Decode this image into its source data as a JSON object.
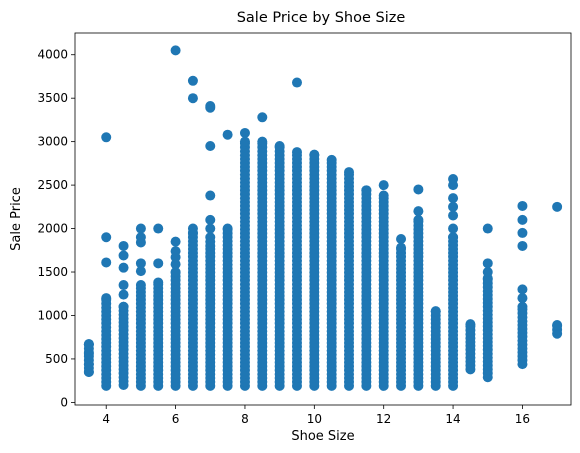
{
  "chart_data": {
    "type": "scatter",
    "title": "Sale Price by Shoe Size",
    "xlabel": "Shoe Size",
    "ylabel": "Sale Price",
    "xlim": [
      3.1,
      17.4
    ],
    "ylim": [
      -30,
      4250
    ],
    "xticks": [
      4,
      6,
      8,
      10,
      12,
      14,
      16
    ],
    "yticks": [
      0,
      500,
      1000,
      1500,
      2000,
      2500,
      3000,
      3500,
      4000
    ],
    "grid": false,
    "marker_color": "#1f77b4",
    "series": [
      {
        "columns": [
          {
            "x": 3.5,
            "min": 350,
            "max": 670,
            "extra": [
              350,
              440,
              560,
              670
            ]
          },
          {
            "x": 4,
            "min": 190,
            "max": 1200,
            "extra": [
              1610,
              1900,
              3050
            ]
          },
          {
            "x": 4.5,
            "min": 200,
            "max": 1100,
            "extra": [
              1240,
              1350,
              1550,
              1690,
              1800
            ]
          },
          {
            "x": 5,
            "min": 190,
            "max": 1350,
            "extra": [
              1510,
              1600,
              1840,
              1900,
              2000
            ]
          },
          {
            "x": 5.5,
            "min": 190,
            "max": 1380,
            "extra": [
              1600,
              2000
            ]
          },
          {
            "x": 6,
            "min": 190,
            "max": 1500,
            "extra": [
              1590,
              1670,
              1740,
              1850,
              4050
            ]
          },
          {
            "x": 6.5,
            "min": 190,
            "max": 1950,
            "extra": [
              2000,
              3500,
              3700
            ]
          },
          {
            "x": 7,
            "min": 190,
            "max": 1800,
            "extra": [
              1850,
              1900,
              2000,
              2100,
              2380,
              2950,
              3390,
              3410
            ]
          },
          {
            "x": 7.5,
            "min": 190,
            "max": 2000,
            "extra": [
              3080
            ]
          },
          {
            "x": 8,
            "min": 190,
            "max": 3000,
            "extra": [
              3100
            ]
          },
          {
            "x": 8.5,
            "min": 190,
            "max": 3000,
            "extra": [
              3280
            ]
          },
          {
            "x": 9,
            "min": 190,
            "max": 2950,
            "extra": []
          },
          {
            "x": 9.5,
            "min": 190,
            "max": 2880,
            "extra": [
              3680
            ]
          },
          {
            "x": 10,
            "min": 190,
            "max": 2850,
            "extra": []
          },
          {
            "x": 10.5,
            "min": 190,
            "max": 2790,
            "extra": []
          },
          {
            "x": 11,
            "min": 190,
            "max": 2650,
            "extra": []
          },
          {
            "x": 11.5,
            "min": 190,
            "max": 2440,
            "extra": []
          },
          {
            "x": 12,
            "min": 190,
            "max": 2380,
            "extra": [
              2500
            ]
          },
          {
            "x": 12.5,
            "min": 190,
            "max": 1780,
            "extra": [
              1880
            ]
          },
          {
            "x": 13,
            "min": 190,
            "max": 2100,
            "extra": [
              2200,
              2450
            ]
          },
          {
            "x": 13.5,
            "min": 190,
            "max": 1050,
            "extra": []
          },
          {
            "x": 14,
            "min": 190,
            "max": 1900,
            "extra": [
              2000,
              2150,
              2250,
              2350,
              2500,
              2570
            ]
          },
          {
            "x": 14.5,
            "min": 380,
            "max": 900,
            "extra": []
          },
          {
            "x": 15,
            "min": 290,
            "max": 1430,
            "extra": [
              1500,
              1600,
              2000
            ]
          },
          {
            "x": 16,
            "min": 440,
            "max": 1100,
            "extra": [
              1200,
              1300,
              1800,
              1950,
              2100,
              2260
            ]
          },
          {
            "x": 17,
            "min": 790,
            "max": 890,
            "extra": [
              2250
            ]
          }
        ]
      }
    ]
  }
}
